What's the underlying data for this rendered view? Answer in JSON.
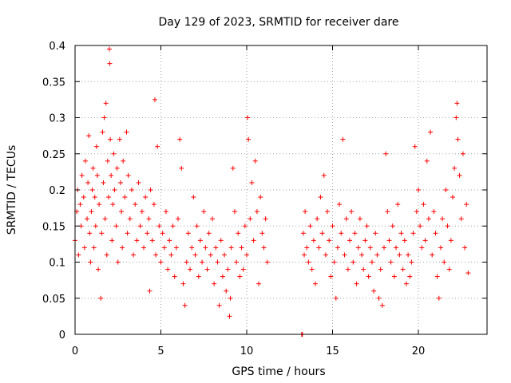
{
  "chart_data": {
    "type": "scatter",
    "title": "Day 129 of 2023, SRMTID for receiver dare",
    "xlabel": "GPS time / hours",
    "ylabel": "SRMTID / TECUs",
    "xlim": [
      0,
      24
    ],
    "ylim": [
      0,
      0.4
    ],
    "xticks": [
      0,
      5,
      10,
      15,
      20
    ],
    "xtick_labels": [
      "0",
      "5",
      "10",
      "15",
      "20"
    ],
    "yticks": [
      0,
      0.05,
      0.1,
      0.15,
      0.2,
      0.25,
      0.3,
      0.35,
      0.4
    ],
    "ytick_labels": [
      "0",
      "0.05",
      "0.1",
      "0.15",
      "0.2",
      "0.25",
      "0.3",
      "0.35",
      "0.4"
    ],
    "grid": true,
    "legend": "none",
    "marker": "+",
    "color": "#ff0000",
    "series": [
      {
        "name": "SRMTID",
        "points": [
          [
            0.0,
            0.13
          ],
          [
            0.1,
            0.17
          ],
          [
            0.15,
            0.2
          ],
          [
            0.2,
            0.11
          ],
          [
            0.3,
            0.18
          ],
          [
            0.35,
            0.15
          ],
          [
            0.4,
            0.22
          ],
          [
            0.5,
            0.19
          ],
          [
            0.55,
            0.12
          ],
          [
            0.6,
            0.24
          ],
          [
            0.7,
            0.16
          ],
          [
            0.75,
            0.21
          ],
          [
            0.8,
            0.275
          ],
          [
            0.85,
            0.14
          ],
          [
            0.9,
            0.1
          ],
          [
            0.95,
            0.17
          ],
          [
            1.0,
            0.2
          ],
          [
            1.05,
            0.23
          ],
          [
            1.1,
            0.12
          ],
          [
            1.15,
            0.19
          ],
          [
            1.2,
            0.15
          ],
          [
            1.25,
            0.26
          ],
          [
            1.3,
            0.22
          ],
          [
            1.35,
            0.09
          ],
          [
            1.4,
            0.18
          ],
          [
            1.5,
            0.05
          ],
          [
            1.55,
            0.14
          ],
          [
            1.6,
            0.28
          ],
          [
            1.65,
            0.21
          ],
          [
            1.7,
            0.3
          ],
          [
            1.75,
            0.16
          ],
          [
            1.8,
            0.32
          ],
          [
            1.85,
            0.11
          ],
          [
            1.9,
            0.24
          ],
          [
            1.95,
            0.19
          ],
          [
            2.0,
            0.395
          ],
          [
            2.02,
            0.375
          ],
          [
            2.05,
            0.27
          ],
          [
            2.1,
            0.22
          ],
          [
            2.15,
            0.13
          ],
          [
            2.2,
            0.18
          ],
          [
            2.25,
            0.25
          ],
          [
            2.3,
            0.2
          ],
          [
            2.4,
            0.15
          ],
          [
            2.45,
            0.23
          ],
          [
            2.5,
            0.1
          ],
          [
            2.6,
            0.27
          ],
          [
            2.65,
            0.21
          ],
          [
            2.7,
            0.17
          ],
          [
            2.75,
            0.12
          ],
          [
            2.8,
            0.24
          ],
          [
            2.9,
            0.19
          ],
          [
            3.0,
            0.28
          ],
          [
            3.05,
            0.14
          ],
          [
            3.1,
            0.22
          ],
          [
            3.2,
            0.16
          ],
          [
            3.3,
            0.2
          ],
          [
            3.4,
            0.11
          ],
          [
            3.5,
            0.18
          ],
          [
            3.6,
            0.13
          ],
          [
            3.7,
            0.21
          ],
          [
            3.8,
            0.15
          ],
          [
            3.9,
            0.17
          ],
          [
            4.0,
            0.12
          ],
          [
            4.1,
            0.19
          ],
          [
            4.2,
            0.14
          ],
          [
            4.3,
            0.16
          ],
          [
            4.35,
            0.06
          ],
          [
            4.4,
            0.2
          ],
          [
            4.5,
            0.13
          ],
          [
            4.6,
            0.18
          ],
          [
            4.65,
            0.325
          ],
          [
            4.7,
            0.11
          ],
          [
            4.8,
            0.26
          ],
          [
            4.9,
            0.15
          ],
          [
            5.0,
            0.1
          ],
          [
            5.1,
            0.14
          ],
          [
            5.2,
            0.12
          ],
          [
            5.3,
            0.17
          ],
          [
            5.4,
            0.09
          ],
          [
            5.5,
            0.13
          ],
          [
            5.6,
            0.11
          ],
          [
            5.7,
            0.15
          ],
          [
            5.8,
            0.08
          ],
          [
            5.9,
            0.12
          ],
          [
            6.0,
            0.16
          ],
          [
            6.1,
            0.27
          ],
          [
            6.2,
            0.23
          ],
          [
            6.3,
            0.07
          ],
          [
            6.4,
            0.04
          ],
          [
            6.5,
            0.1
          ],
          [
            6.6,
            0.14
          ],
          [
            6.7,
            0.09
          ],
          [
            6.8,
            0.12
          ],
          [
            6.9,
            0.19
          ],
          [
            7.0,
            0.11
          ],
          [
            7.1,
            0.15
          ],
          [
            7.2,
            0.08
          ],
          [
            7.3,
            0.13
          ],
          [
            7.4,
            0.1
          ],
          [
            7.5,
            0.17
          ],
          [
            7.6,
            0.12
          ],
          [
            7.7,
            0.09
          ],
          [
            7.8,
            0.14
          ],
          [
            7.9,
            0.11
          ],
          [
            8.0,
            0.16
          ],
          [
            8.1,
            0.07
          ],
          [
            8.2,
            0.12
          ],
          [
            8.3,
            0.1
          ],
          [
            8.4,
            0.04
          ],
          [
            8.5,
            0.13
          ],
          [
            8.6,
            0.08
          ],
          [
            8.7,
            0.11
          ],
          [
            8.8,
            0.06
          ],
          [
            8.9,
            0.09
          ],
          [
            9.0,
            0.025
          ],
          [
            9.05,
            0.05
          ],
          [
            9.1,
            0.12
          ],
          [
            9.2,
            0.23
          ],
          [
            9.3,
            0.17
          ],
          [
            9.4,
            0.1
          ],
          [
            9.5,
            0.14
          ],
          [
            9.6,
            0.08
          ],
          [
            9.7,
            0.12
          ],
          [
            9.8,
            0.09
          ],
          [
            9.9,
            0.15
          ],
          [
            10.0,
            0.11
          ],
          [
            10.05,
            0.3
          ],
          [
            10.1,
            0.27
          ],
          [
            10.2,
            0.16
          ],
          [
            10.3,
            0.21
          ],
          [
            10.4,
            0.13
          ],
          [
            10.5,
            0.24
          ],
          [
            10.6,
            0.17
          ],
          [
            10.7,
            0.07
          ],
          [
            10.8,
            0.19
          ],
          [
            10.9,
            0.14
          ],
          [
            11.0,
            0.12
          ],
          [
            11.1,
            0.16
          ],
          [
            11.2,
            0.1
          ],
          [
            13.2,
            0.0
          ],
          [
            13.25,
            0.0
          ],
          [
            13.3,
            0.14
          ],
          [
            13.35,
            0.11
          ],
          [
            13.4,
            0.17
          ],
          [
            13.5,
            0.12
          ],
          [
            13.6,
            0.1
          ],
          [
            13.7,
            0.15
          ],
          [
            13.8,
            0.09
          ],
          [
            13.9,
            0.13
          ],
          [
            14.0,
            0.07
          ],
          [
            14.1,
            0.16
          ],
          [
            14.2,
            0.12
          ],
          [
            14.3,
            0.19
          ],
          [
            14.4,
            0.14
          ],
          [
            14.5,
            0.22
          ],
          [
            14.6,
            0.11
          ],
          [
            14.7,
            0.17
          ],
          [
            14.8,
            0.13
          ],
          [
            14.9,
            0.08
          ],
          [
            15.0,
            0.15
          ],
          [
            15.1,
            0.1
          ],
          [
            15.2,
            0.05
          ],
          [
            15.3,
            0.12
          ],
          [
            15.4,
            0.18
          ],
          [
            15.5,
            0.14
          ],
          [
            15.6,
            0.27
          ],
          [
            15.7,
            0.11
          ],
          [
            15.8,
            0.16
          ],
          [
            15.9,
            0.09
          ],
          [
            16.0,
            0.13
          ],
          [
            16.1,
            0.17
          ],
          [
            16.2,
            0.1
          ],
          [
            16.3,
            0.14
          ],
          [
            16.4,
            0.07
          ],
          [
            16.5,
            0.12
          ],
          [
            16.6,
            0.16
          ],
          [
            16.7,
            0.11
          ],
          [
            16.8,
            0.09
          ],
          [
            16.9,
            0.13
          ],
          [
            17.0,
            0.15
          ],
          [
            17.1,
            0.08
          ],
          [
            17.2,
            0.12
          ],
          [
            17.3,
            0.1
          ],
          [
            17.4,
            0.06
          ],
          [
            17.5,
            0.14
          ],
          [
            17.6,
            0.11
          ],
          [
            17.7,
            0.05
          ],
          [
            17.8,
            0.09
          ],
          [
            17.9,
            0.04
          ],
          [
            18.0,
            0.12
          ],
          [
            18.1,
            0.25
          ],
          [
            18.2,
            0.17
          ],
          [
            18.3,
            0.13
          ],
          [
            18.4,
            0.1
          ],
          [
            18.5,
            0.15
          ],
          [
            18.6,
            0.08
          ],
          [
            18.7,
            0.12
          ],
          [
            18.8,
            0.18
          ],
          [
            18.9,
            0.11
          ],
          [
            19.0,
            0.14
          ],
          [
            19.1,
            0.09
          ],
          [
            19.2,
            0.13
          ],
          [
            19.3,
            0.07
          ],
          [
            19.4,
            0.11
          ],
          [
            19.5,
            0.08
          ],
          [
            19.6,
            0.1
          ],
          [
            19.7,
            0.14
          ],
          [
            19.8,
            0.26
          ],
          [
            19.9,
            0.17
          ],
          [
            20.0,
            0.2
          ],
          [
            20.1,
            0.15
          ],
          [
            20.2,
            0.12
          ],
          [
            20.3,
            0.18
          ],
          [
            20.4,
            0.13
          ],
          [
            20.5,
            0.24
          ],
          [
            20.6,
            0.16
          ],
          [
            20.7,
            0.28
          ],
          [
            20.8,
            0.11
          ],
          [
            20.9,
            0.17
          ],
          [
            21.0,
            0.14
          ],
          [
            21.1,
            0.08
          ],
          [
            21.2,
            0.05
          ],
          [
            21.3,
            0.12
          ],
          [
            21.4,
            0.16
          ],
          [
            21.5,
            0.1
          ],
          [
            21.6,
            0.2
          ],
          [
            21.7,
            0.15
          ],
          [
            21.8,
            0.09
          ],
          [
            21.9,
            0.13
          ],
          [
            22.0,
            0.19
          ],
          [
            22.1,
            0.23
          ],
          [
            22.2,
            0.3
          ],
          [
            22.25,
            0.32
          ],
          [
            22.3,
            0.27
          ],
          [
            22.4,
            0.22
          ],
          [
            22.5,
            0.16
          ],
          [
            22.6,
            0.25
          ],
          [
            22.7,
            0.12
          ],
          [
            22.8,
            0.18
          ],
          [
            22.9,
            0.085
          ]
        ]
      }
    ]
  }
}
